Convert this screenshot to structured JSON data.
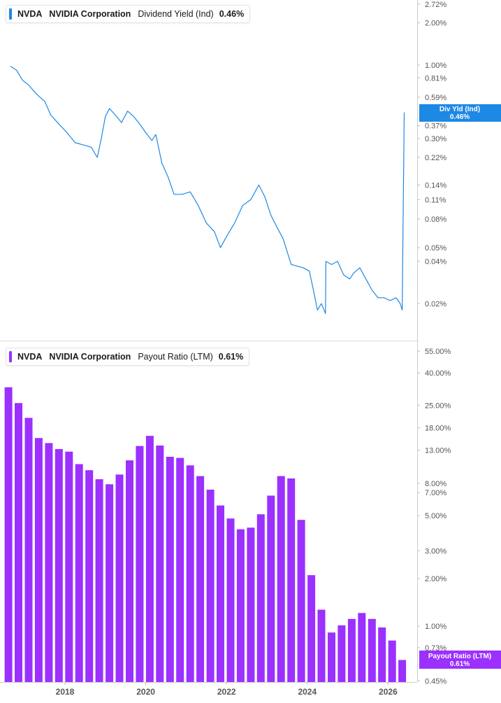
{
  "legend_top": {
    "symbol": "NVDA",
    "company": "NVIDIA Corporation",
    "metric": "Dividend Yield (Ind)",
    "value": "0.46%",
    "color": "#1E88E5"
  },
  "legend_bottom": {
    "symbol": "NVDA",
    "company": "NVIDIA Corporation",
    "metric": "Payout Ratio (LTM)",
    "value": "0.61%",
    "color": "#9B30FF"
  },
  "flags": {
    "top": {
      "label": "Div Yld (Ind)",
      "value": "0.46%"
    },
    "bottom": {
      "label": "Payout Ratio (LTM)",
      "value": "0.61%"
    }
  },
  "x_axis": {
    "ticks": [
      {
        "year": 2018,
        "label": "2018"
      },
      {
        "year": 2020,
        "label": "2020"
      },
      {
        "year": 2022,
        "label": "2022"
      },
      {
        "year": 2024,
        "label": "2024"
      },
      {
        "year": 2026,
        "label": "2026"
      }
    ]
  },
  "chart_data": [
    {
      "type": "line",
      "name": "Dividend Yield (Ind)",
      "scale": "log",
      "unit": "%",
      "y_ticks": [
        {
          "v": 2.72,
          "label": "2.72%"
        },
        {
          "v": 2.0,
          "label": "2.00%"
        },
        {
          "v": 1.0,
          "label": "1.00%"
        },
        {
          "v": 0.81,
          "label": "0.81%"
        },
        {
          "v": 0.59,
          "label": "0.59%"
        },
        {
          "v": 0.37,
          "label": "0.37%"
        },
        {
          "v": 0.3,
          "label": "0.30%"
        },
        {
          "v": 0.22,
          "label": "0.22%"
        },
        {
          "v": 0.14,
          "label": "0.14%"
        },
        {
          "v": 0.11,
          "label": "0.11%"
        },
        {
          "v": 0.08,
          "label": "0.08%"
        },
        {
          "v": 0.05,
          "label": "0.05%"
        },
        {
          "v": 0.04,
          "label": "0.04%"
        },
        {
          "v": 0.02,
          "label": "0.02%"
        }
      ],
      "points": [
        [
          2016.65,
          0.98
        ],
        [
          2016.8,
          0.92
        ],
        [
          2016.95,
          0.78
        ],
        [
          2017.1,
          0.72
        ],
        [
          2017.3,
          0.62
        ],
        [
          2017.5,
          0.55
        ],
        [
          2017.65,
          0.44
        ],
        [
          2017.85,
          0.38
        ],
        [
          2018.05,
          0.33
        ],
        [
          2018.25,
          0.28
        ],
        [
          2018.45,
          0.27
        ],
        [
          2018.65,
          0.26
        ],
        [
          2018.8,
          0.22
        ],
        [
          2018.9,
          0.3
        ],
        [
          2019.0,
          0.43
        ],
        [
          2019.1,
          0.49
        ],
        [
          2019.25,
          0.44
        ],
        [
          2019.4,
          0.39
        ],
        [
          2019.55,
          0.47
        ],
        [
          2019.7,
          0.43
        ],
        [
          2019.85,
          0.38
        ],
        [
          2020.0,
          0.33
        ],
        [
          2020.15,
          0.29
        ],
        [
          2020.25,
          0.32
        ],
        [
          2020.4,
          0.2
        ],
        [
          2020.55,
          0.16
        ],
        [
          2020.7,
          0.12
        ],
        [
          2020.9,
          0.12
        ],
        [
          2021.1,
          0.125
        ],
        [
          2021.3,
          0.1
        ],
        [
          2021.5,
          0.075
        ],
        [
          2021.7,
          0.065
        ],
        [
          2021.85,
          0.05
        ],
        [
          2022.0,
          0.06
        ],
        [
          2022.2,
          0.075
        ],
        [
          2022.4,
          0.1
        ],
        [
          2022.6,
          0.11
        ],
        [
          2022.8,
          0.14
        ],
        [
          2022.95,
          0.115
        ],
        [
          2023.1,
          0.085
        ],
        [
          2023.25,
          0.07
        ],
        [
          2023.4,
          0.058
        ],
        [
          2023.6,
          0.038
        ],
        [
          2023.75,
          0.037
        ],
        [
          2023.9,
          0.036
        ],
        [
          2024.05,
          0.034
        ],
        [
          2024.15,
          0.025
        ],
        [
          2024.25,
          0.018
        ],
        [
          2024.35,
          0.02
        ],
        [
          2024.45,
          0.017
        ],
        [
          2024.46,
          0.04
        ],
        [
          2024.6,
          0.038
        ],
        [
          2024.75,
          0.04
        ],
        [
          2024.9,
          0.032
        ],
        [
          2025.05,
          0.03
        ],
        [
          2025.15,
          0.033
        ],
        [
          2025.3,
          0.036
        ],
        [
          2025.45,
          0.03
        ],
        [
          2025.6,
          0.025
        ],
        [
          2025.75,
          0.022
        ],
        [
          2025.9,
          0.022
        ],
        [
          2026.05,
          0.021
        ],
        [
          2026.2,
          0.022
        ],
        [
          2026.3,
          0.02
        ],
        [
          2026.35,
          0.018
        ],
        [
          2026.4,
          0.46
        ]
      ]
    },
    {
      "type": "bar",
      "name": "Payout Ratio (LTM)",
      "scale": "log",
      "unit": "%",
      "y_ticks": [
        {
          "v": 55,
          "label": "55.00%"
        },
        {
          "v": 40,
          "label": "40.00%"
        },
        {
          "v": 25,
          "label": "25.00%"
        },
        {
          "v": 18,
          "label": "18.00%"
        },
        {
          "v": 13,
          "label": "13.00%"
        },
        {
          "v": 8,
          "label": "8.00%"
        },
        {
          "v": 7,
          "label": "7.00%"
        },
        {
          "v": 5,
          "label": "5.00%"
        },
        {
          "v": 3,
          "label": "3.00%"
        },
        {
          "v": 2,
          "label": "2.00%"
        },
        {
          "v": 1,
          "label": "1.00%"
        },
        {
          "v": 0.73,
          "label": "0.73%"
        },
        {
          "v": 0.45,
          "label": "0.45%"
        }
      ],
      "x": [
        2016.6,
        2016.85,
        2017.1,
        2017.35,
        2017.6,
        2017.85,
        2018.1,
        2018.35,
        2018.6,
        2018.85,
        2019.1,
        2019.35,
        2019.6,
        2019.85,
        2020.1,
        2020.35,
        2020.6,
        2020.85,
        2021.1,
        2021.35,
        2021.6,
        2021.85,
        2022.1,
        2022.35,
        2022.6,
        2022.85,
        2023.1,
        2023.35,
        2023.6,
        2023.85,
        2024.1,
        2024.35,
        2024.6,
        2024.85,
        2025.1,
        2025.35,
        2025.6,
        2025.85,
        2026.1,
        2026.35
      ],
      "values": [
        32.5,
        25.8,
        20.8,
        15.5,
        14.4,
        13.2,
        12.7,
        10.6,
        9.7,
        8.5,
        7.9,
        9.1,
        11.2,
        13.8,
        16.0,
        13.9,
        11.8,
        11.6,
        10.4,
        8.9,
        7.3,
        5.8,
        4.8,
        4.1,
        4.2,
        5.1,
        6.7,
        8.9,
        8.6,
        4.7,
        2.1,
        1.27,
        0.91,
        1.01,
        1.11,
        1.21,
        1.11,
        0.98,
        0.81,
        0.61
      ]
    }
  ]
}
